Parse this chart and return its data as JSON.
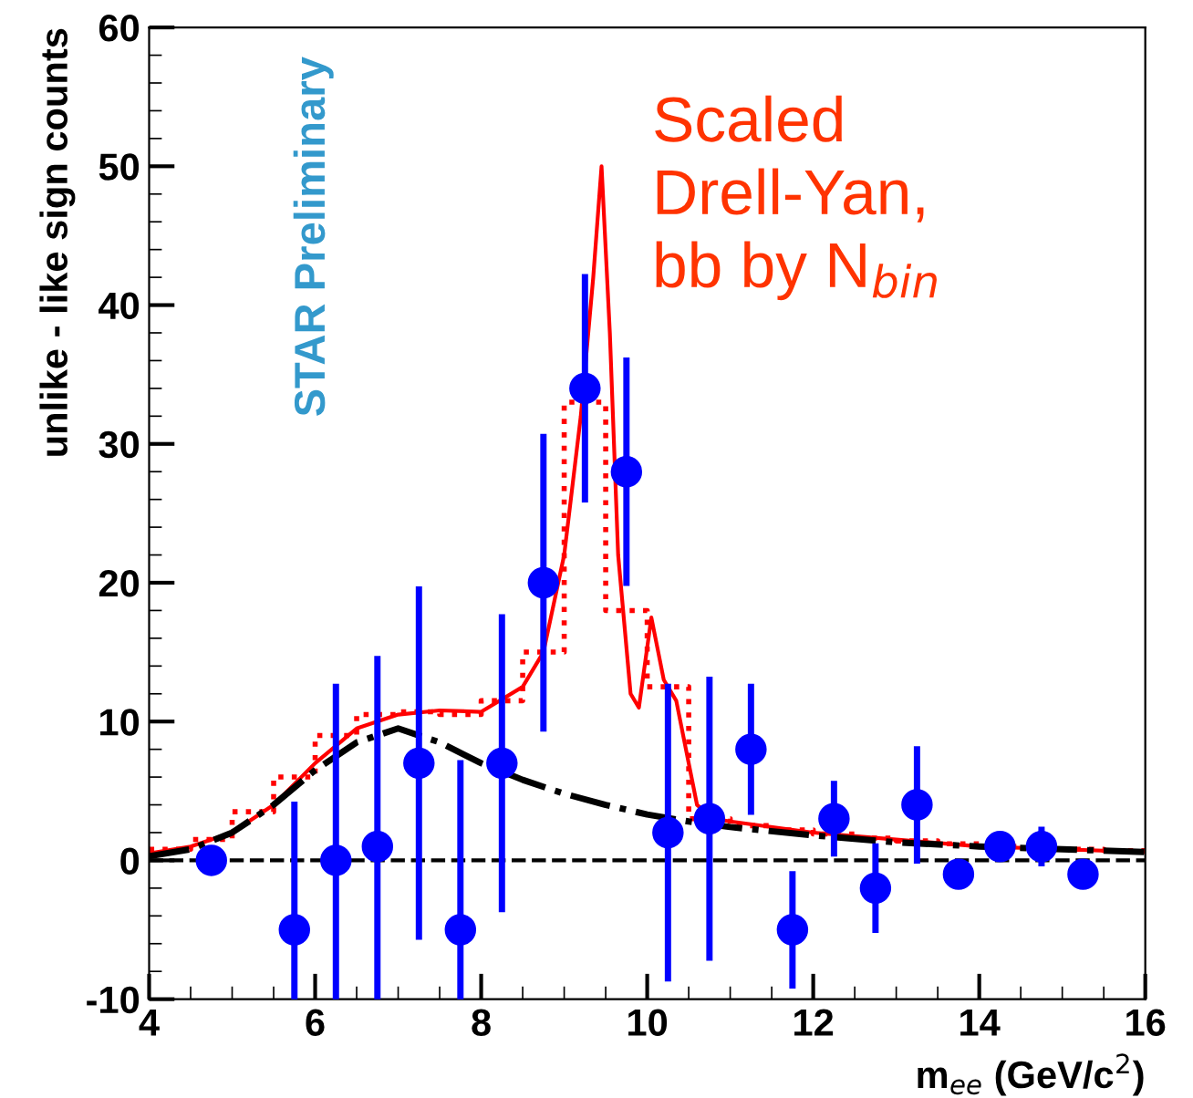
{
  "chart_data": {
    "type": "scatter",
    "xlabel": "m$_{ee}$ (GeV/c$^{2}$)",
    "ylabel": "unlike - like sign counts",
    "xlim": [
      4,
      16
    ],
    "xticks": [
      4,
      6,
      8,
      10,
      12,
      14,
      16
    ],
    "ylim": [
      -10,
      60
    ],
    "yticks": [
      -10,
      0,
      10,
      20,
      30,
      40,
      50,
      60
    ],
    "grid": false,
    "legend": false,
    "ref_lines": [
      {
        "axis": "y",
        "value": 0,
        "color": "#000000",
        "line_style": "dashed"
      }
    ],
    "annotations": [
      "Scaled\nDrell-Yan,\nbb by N$_{bin}$",
      "STAR Preliminary"
    ],
    "series": [
      {
        "type": "step",
        "color": "#ff0000",
        "line_style": "dotted",
        "marker": "none",
        "x": [
          4.0,
          4.5,
          5.0,
          5.5,
          6.0,
          6.5,
          7.0,
          7.5,
          8.0,
          8.5,
          9.0,
          9.5,
          10.0,
          10.5,
          11.0,
          11.5,
          12.0,
          12.5,
          13.0,
          13.5,
          14.0,
          14.5,
          15.0,
          15.5,
          16.0
        ],
        "values": [
          0.8,
          1.5,
          3.5,
          6,
          9,
          10.5,
          10.7,
          10.5,
          11.5,
          15,
          33,
          18,
          12.5,
          3,
          2.5,
          2.2,
          1.9,
          1.6,
          1.4,
          1.2,
          1,
          0.9,
          0.8,
          0.7,
          0.7
        ]
      },
      {
        "type": "line",
        "color": "#ff0000",
        "line_style": "solid",
        "marker": "none",
        "x": [
          4,
          4.5,
          5,
          5.5,
          6,
          6.5,
          7,
          7.5,
          8,
          8.5,
          8.75,
          9,
          9.2,
          9.35,
          9.45,
          9.55,
          9.65,
          9.8,
          9.9,
          10.05,
          10.2,
          10.35,
          10.5,
          10.6,
          10.8,
          11,
          12,
          13,
          14,
          15,
          16
        ],
        "values": [
          0.5,
          1,
          2,
          4,
          7,
          9.5,
          10.5,
          10.8,
          10.7,
          12.5,
          15,
          22,
          32,
          42,
          50,
          38,
          22,
          12,
          11,
          17.5,
          13,
          11.5,
          7,
          4,
          3,
          2.8,
          2,
          1.5,
          1,
          0.8,
          0.6
        ]
      },
      {
        "type": "line",
        "color": "#000000",
        "line_style": "dashdot",
        "marker": "none",
        "x": [
          4,
          4.5,
          5,
          5.5,
          6,
          6.5,
          7,
          7.5,
          8,
          8.5,
          9,
          9.5,
          10,
          10.5,
          11,
          12,
          13,
          14,
          15,
          16
        ],
        "values": [
          0.3,
          0.8,
          2,
          4,
          6.5,
          8.5,
          9.5,
          8.5,
          7,
          5.8,
          4.8,
          4,
          3.3,
          2.8,
          2.4,
          1.8,
          1.3,
          1,
          0.8,
          0.6
        ]
      },
      {
        "color": "#0000ff",
        "marker": "circle",
        "x": [
          4.75,
          5.75,
          6.25,
          6.75,
          7.25,
          7.75,
          8.25,
          8.75,
          9.25,
          9.75,
          10.25,
          10.75,
          11.25,
          11.75,
          12.25,
          12.75,
          13.25,
          13.75,
          14.25,
          14.75,
          15.25
        ],
        "values": [
          0,
          -5,
          0,
          1,
          7,
          -5,
          7,
          20,
          34,
          28,
          2,
          3,
          8,
          -5,
          3,
          -2,
          4,
          -1,
          1,
          1,
          -1
        ],
        "errors": [
          null,
          9,
          12.5,
          13.5,
          12.5,
          12,
          10.5,
          10.5,
          8,
          8,
          10.5,
          10,
          4.5,
          4,
          2.5,
          3,
          4,
          null,
          null,
          1.2,
          null
        ]
      }
    ]
  }
}
